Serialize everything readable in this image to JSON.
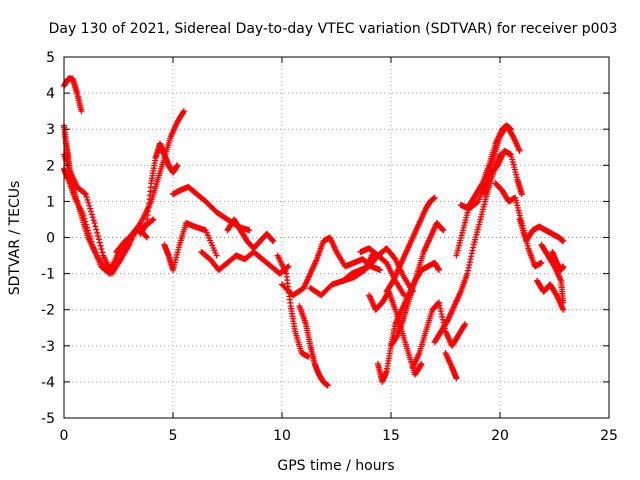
{
  "chart_data": {
    "type": "scatter",
    "title": "Day 130 of 2021, Sidereal Day-to-day VTEC variation (SDTVAR) for receiver p003",
    "xlabel": "GPS time / hours",
    "ylabel": "SDTVAR / TECUs",
    "xlim": [
      0,
      25
    ],
    "ylim": [
      -5,
      5
    ],
    "xticks": [
      0,
      5,
      10,
      15,
      20,
      25
    ],
    "yticks": [
      -5,
      -4,
      -3,
      -2,
      -1,
      0,
      1,
      2,
      3,
      4,
      5
    ],
    "grid": true,
    "marker": "+",
    "series": [
      {
        "name": "SDTVAR",
        "color": "#ff0000",
        "segments": [
          {
            "x": [
              0.0,
              0.2,
              0.4,
              0.6,
              0.8
            ],
            "y": [
              4.2,
              4.4,
              4.4,
              4.0,
              3.5
            ]
          },
          {
            "x": [
              0.0,
              0.1,
              0.2,
              0.3,
              0.5,
              0.8,
              1.1,
              1.5,
              1.9,
              2.2,
              2.6,
              3.0
            ],
            "y": [
              3.1,
              2.6,
              2.2,
              1.7,
              1.2,
              0.6,
              0.0,
              -0.5,
              -0.9,
              -0.8,
              -0.3,
              -0.2
            ]
          },
          {
            "x": [
              0.0,
              0.2,
              0.5,
              0.9,
              1.3,
              1.7,
              2.1,
              2.5,
              2.9,
              3.3,
              3.7,
              4.1
            ],
            "y": [
              1.9,
              1.6,
              1.1,
              0.6,
              -0.2,
              -0.8,
              -1.0,
              -0.7,
              -0.3,
              0.2,
              0.3,
              0.5
            ]
          },
          {
            "x": [
              0.0,
              0.3,
              0.6,
              1.0,
              1.4,
              1.8,
              2.2,
              2.6,
              3.0,
              3.4,
              3.8
            ],
            "y": [
              2.3,
              1.8,
              1.4,
              1.2,
              0.4,
              -0.5,
              -1.0,
              -0.6,
              0.0,
              0.3,
              0.0
            ]
          },
          {
            "x": [
              2.4,
              2.8,
              3.2,
              3.6,
              4.0,
              4.3,
              4.6,
              4.9,
              5.2,
              5.5
            ],
            "y": [
              -0.4,
              -0.1,
              0.1,
              0.5,
              1.0,
              1.6,
              2.2,
              2.8,
              3.2,
              3.5
            ]
          },
          {
            "x": [
              3.5,
              3.8,
              4.0,
              4.2,
              4.4,
              4.6,
              4.8,
              5.0,
              5.2
            ],
            "y": [
              0.1,
              0.4,
              1.5,
              2.2,
              2.6,
              2.3,
              2.0,
              1.8,
              2.0
            ]
          },
          {
            "x": [
              4.6,
              4.8,
              5.0,
              5.3,
              5.6,
              6.0,
              6.5,
              7.0
            ],
            "y": [
              -0.2,
              -0.5,
              -0.9,
              -0.2,
              0.4,
              0.3,
              0.2,
              -0.5
            ]
          },
          {
            "x": [
              5.0,
              5.3,
              5.7,
              6.1,
              6.5,
              7.0,
              7.5,
              8.0,
              8.5
            ],
            "y": [
              1.2,
              1.3,
              1.4,
              1.2,
              1.0,
              0.7,
              0.5,
              0.3,
              0.2
            ]
          },
          {
            "x": [
              6.3,
              6.7,
              7.1,
              7.5,
              7.9,
              8.3,
              8.7,
              9.1,
              9.5,
              9.9,
              10.3
            ],
            "y": [
              -0.4,
              -0.6,
              -0.9,
              -0.7,
              -0.5,
              -0.6,
              -0.4,
              -0.6,
              -0.8,
              -1.0,
              -0.8
            ]
          },
          {
            "x": [
              7.5,
              7.8,
              8.1,
              8.4,
              8.7,
              9.0,
              9.3,
              9.6
            ],
            "y": [
              0.2,
              0.5,
              0.2,
              -0.1,
              -0.3,
              -0.1,
              0.1,
              -0.1
            ]
          },
          {
            "x": [
              9.8,
              10.2,
              10.4,
              10.6,
              10.9,
              11.2
            ],
            "y": [
              -0.5,
              -1.0,
              -1.9,
              -2.6,
              -3.2,
              -3.3
            ]
          },
          {
            "x": [
              10.8,
              11.1,
              11.3,
              11.5,
              11.7,
              11.9,
              12.1
            ],
            "y": [
              -1.9,
              -2.4,
              -3.0,
              -3.5,
              -3.8,
              -4.0,
              -4.1
            ]
          },
          {
            "x": [
              10.0,
              10.5,
              11.0,
              11.3,
              11.6,
              11.9,
              12.2,
              12.5,
              12.9,
              13.3,
              13.7,
              14.1,
              14.5
            ],
            "y": [
              -1.3,
              -1.6,
              -1.4,
              -1.0,
              -0.6,
              -0.1,
              0.0,
              -0.4,
              -0.8,
              -0.7,
              -0.6,
              -0.8,
              -0.9
            ]
          },
          {
            "x": [
              11.3,
              11.8,
              12.3,
              12.8,
              13.3,
              13.8,
              14.2
            ],
            "y": [
              -1.4,
              -1.6,
              -1.3,
              -1.2,
              -1.1,
              -0.9,
              -0.4
            ]
          },
          {
            "x": [
              12.8,
              13.2,
              13.6,
              14.0,
              14.4,
              14.8,
              15.2,
              15.6,
              16.0
            ],
            "y": [
              -1.2,
              -1.0,
              -0.9,
              -0.8,
              -0.5,
              -0.3,
              -0.6,
              -1.1,
              -1.5
            ]
          },
          {
            "x": [
              13.6,
              14.0,
              14.4,
              14.8,
              15.2,
              15.6
            ],
            "y": [
              -0.4,
              -0.3,
              -0.5,
              -0.7,
              -1.2,
              -1.6
            ]
          },
          {
            "x": [
              14.0,
              14.3,
              14.6,
              14.9,
              15.2,
              15.5,
              15.8,
              16.1,
              16.4
            ],
            "y": [
              -1.6,
              -2.0,
              -1.8,
              -1.5,
              -2.0,
              -2.6,
              -3.2,
              -3.8,
              -3.5
            ]
          },
          {
            "x": [
              14.8,
              15.1,
              15.4,
              15.7,
              16.0,
              16.3,
              16.6,
              16.8,
              17.0
            ],
            "y": [
              -1.5,
              -1.2,
              -0.8,
              -0.4,
              0.0,
              0.4,
              0.8,
              1.0,
              1.1
            ]
          },
          {
            "x": [
              14.4,
              14.6,
              14.8,
              15.0,
              15.2,
              15.5,
              15.8,
              16.1,
              16.4,
              16.7,
              17.0,
              17.2
            ],
            "y": [
              -3.5,
              -4.0,
              -3.7,
              -3.0,
              -2.4,
              -2.0,
              -1.6,
              -1.2,
              -0.9,
              -0.8,
              -0.7,
              -0.9
            ]
          },
          {
            "x": [
              15.0,
              15.3,
              15.6,
              15.9,
              16.2,
              16.5,
              16.8,
              17.1,
              17.4
            ],
            "y": [
              -3.0,
              -2.7,
              -2.2,
              -1.6,
              -1.0,
              -0.4,
              0.0,
              0.4,
              0.2
            ]
          },
          {
            "x": [
              16.0,
              16.3,
              16.6,
              16.9,
              17.2,
              17.5,
              17.8,
              18.1,
              18.4
            ],
            "y": [
              -3.6,
              -3.2,
              -2.6,
              -2.0,
              -1.8,
              -2.6,
              -3.0,
              -2.7,
              -2.4
            ]
          },
          {
            "x": [
              17.0,
              17.3,
              17.6,
              17.9,
              18.2,
              18.5,
              18.8,
              19.1,
              19.4,
              19.7,
              20.0
            ],
            "y": [
              -2.9,
              -2.6,
              -2.3,
              -1.9,
              -1.5,
              -1.0,
              -0.2,
              0.5,
              1.2,
              1.8,
              2.3
            ]
          },
          {
            "x": [
              17.5,
              17.8,
              18.0
            ],
            "y": [
              -3.2,
              -3.6,
              -3.9
            ]
          },
          {
            "x": [
              18.0,
              18.3,
              18.6,
              18.9,
              19.2,
              19.5,
              19.8,
              20.1,
              20.3,
              20.5
            ],
            "y": [
              -0.5,
              0.2,
              0.9,
              1.2,
              1.5,
              2.0,
              2.6,
              3.0,
              3.1,
              3.0
            ]
          },
          {
            "x": [
              18.2,
              18.6,
              19.0,
              19.4,
              19.7,
              20.0,
              20.3,
              20.6,
              20.9
            ],
            "y": [
              0.9,
              0.8,
              1.0,
              1.6,
              2.2,
              2.8,
              3.1,
              2.8,
              2.4
            ]
          },
          {
            "x": [
              19.3,
              19.6,
              19.9,
              20.2,
              20.5,
              20.8,
              21.0
            ],
            "y": [
              1.2,
              1.8,
              2.0,
              2.4,
              2.3,
              1.6,
              1.2
            ]
          },
          {
            "x": [
              19.8,
              20.1,
              20.4,
              20.7,
              21.0,
              21.3,
              21.6,
              21.9
            ],
            "y": [
              1.5,
              1.3,
              1.0,
              1.1,
              0.4,
              -0.3,
              -0.8,
              -0.7
            ]
          },
          {
            "x": [
              20.9,
              21.2,
              21.5,
              21.8,
              22.1,
              22.4,
              22.7,
              22.9
            ],
            "y": [
              0.5,
              -0.1,
              0.2,
              0.3,
              0.2,
              0.1,
              0.0,
              -0.1
            ]
          },
          {
            "x": [
              21.7,
              22.0,
              22.3,
              22.6,
              22.9
            ],
            "y": [
              -1.2,
              -1.5,
              -1.3,
              -1.6,
              -2.0
            ]
          },
          {
            "x": [
              21.9,
              22.2,
              22.5,
              22.8,
              22.9
            ],
            "y": [
              -0.2,
              -0.5,
              -0.8,
              -1.2,
              -1.8
            ]
          },
          {
            "x": [
              22.4,
              22.6,
              22.8,
              22.9
            ],
            "y": [
              -0.4,
              -0.7,
              -0.9,
              -0.8
            ]
          }
        ]
      }
    ]
  }
}
